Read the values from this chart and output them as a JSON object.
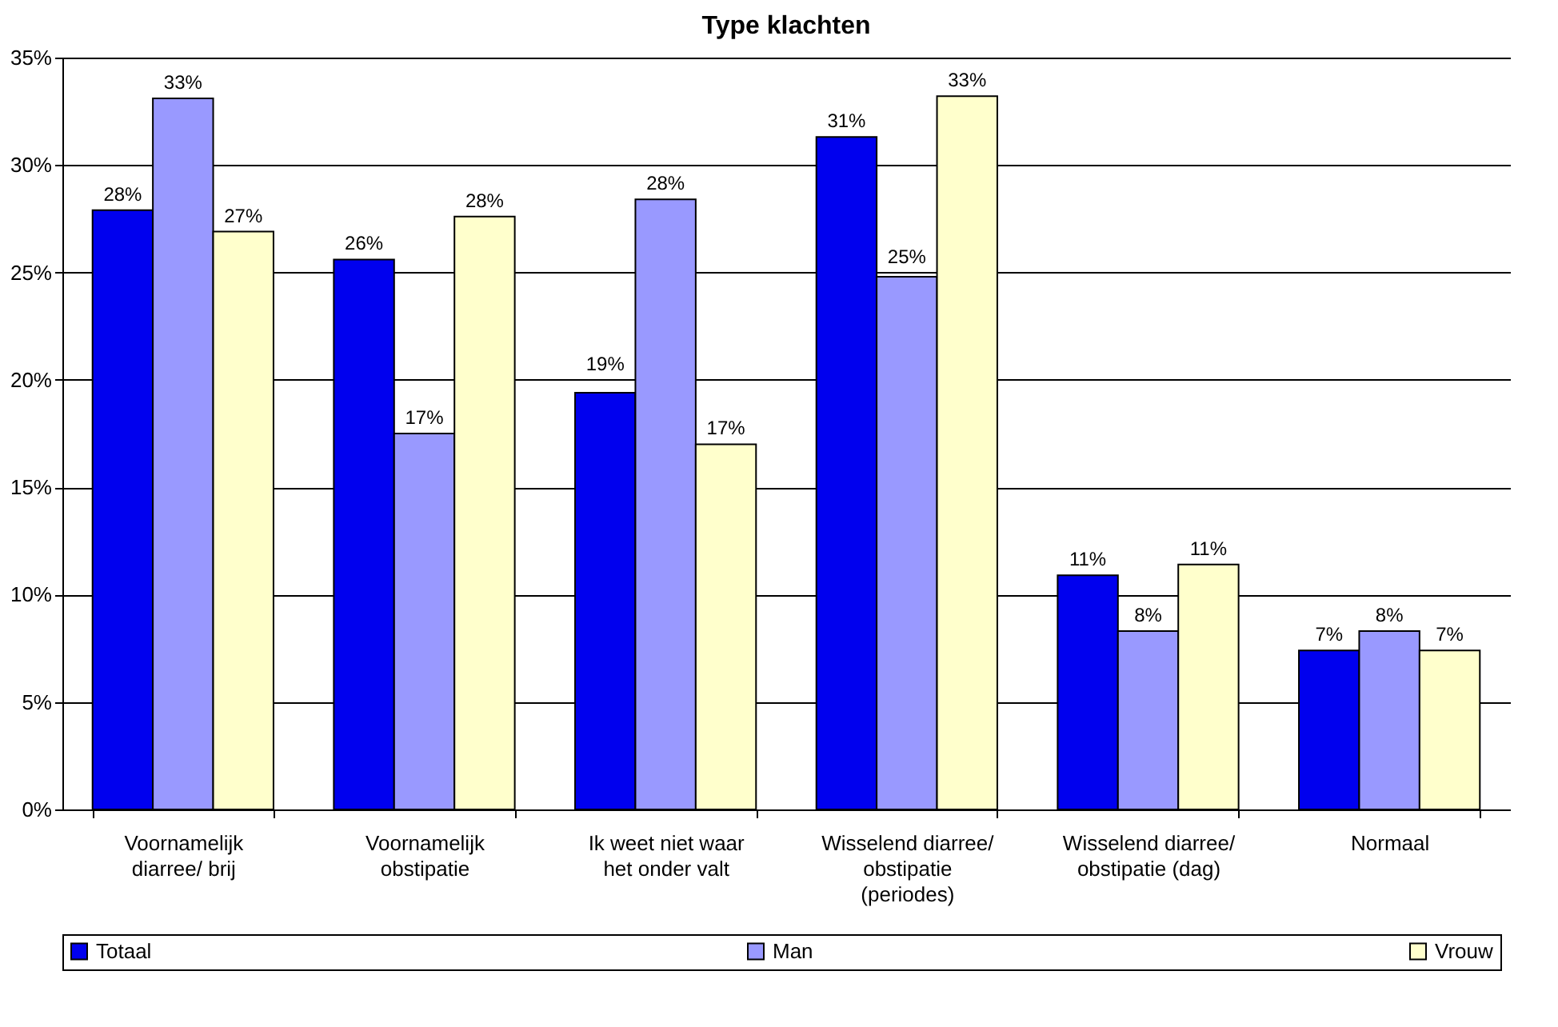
{
  "chart_data": {
    "type": "bar",
    "title": "Type klachten",
    "categories": [
      "Voornamelijk diarree/ brij",
      "Voornamelijk obstipatie",
      "Ik weet niet waar het onder valt",
      "Wisselend diarree/ obstipatie (periodes)",
      "Wisselend diarree/ obstipatie (dag)",
      "Normaal"
    ],
    "series": [
      {
        "name": "Totaal",
        "color": "#0000ee",
        "values": [
          27.9,
          25.6,
          19.4,
          31.3,
          10.9,
          7.4
        ],
        "value_labels": [
          "28%",
          "26%",
          "19%",
          "31%",
          "11%",
          "7%"
        ]
      },
      {
        "name": "Man",
        "color": "#9999ff",
        "values": [
          33.1,
          17.5,
          28.4,
          24.8,
          8.3,
          8.3
        ],
        "value_labels": [
          "33%",
          "17%",
          "28%",
          "25%",
          "8%",
          "8%"
        ]
      },
      {
        "name": "Vrouw",
        "color": "#ffffcc",
        "values": [
          26.9,
          27.6,
          17.0,
          33.2,
          11.4,
          7.4
        ],
        "value_labels": [
          "27%",
          "28%",
          "17%",
          "33%",
          "11%",
          "7%"
        ]
      }
    ],
    "ylim": [
      0,
      35
    ],
    "yticks": [
      {
        "value": 0,
        "label": "0%"
      },
      {
        "value": 5,
        "label": "5%"
      },
      {
        "value": 10,
        "label": "10%"
      },
      {
        "value": 15,
        "label": "15%"
      },
      {
        "value": 20,
        "label": "20%"
      },
      {
        "value": 25,
        "label": "25%"
      },
      {
        "value": 30,
        "label": "30%"
      },
      {
        "value": 35,
        "label": "35%"
      }
    ],
    "grid": "y",
    "legend": "bottom"
  }
}
